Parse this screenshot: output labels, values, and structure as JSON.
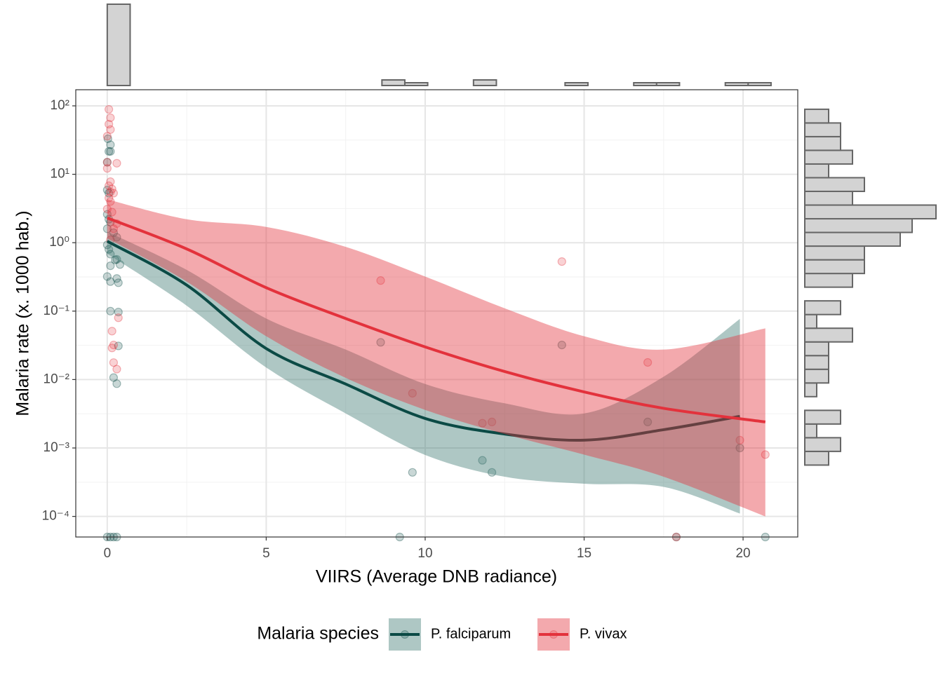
{
  "chart_data": {
    "type": "scatter",
    "x_label": "VIIRS (Average DNB radiance)",
    "y_label": "Malaria rate (x. 1000 hab.)",
    "legend_title": "Malaria species",
    "legend_position": "bottom",
    "grid": true,
    "ylog": true,
    "xlim": [
      -0.99,
      21.72
    ],
    "ylim": [
      5e-05,
      172
    ],
    "xticks": [
      0,
      5,
      10,
      15,
      20
    ],
    "yticks": [
      {
        "value": 100,
        "label": "10²"
      },
      {
        "value": 10,
        "label": "10¹"
      },
      {
        "value": 1,
        "label": "10⁰"
      },
      {
        "value": 0.1,
        "label": "10⁻¹"
      },
      {
        "value": 0.01,
        "label": "10⁻²"
      },
      {
        "value": 0.001,
        "label": "10⁻³"
      },
      {
        "value": 0.0001,
        "label": "10⁻⁴"
      }
    ],
    "series": [
      {
        "name": "P. falciparum",
        "color": "#0b4a45",
        "band_color": "#3f7a72",
        "points": {
          "x": [
            0.02,
            0.1,
            0.05,
            0.1,
            0,
            0,
            0.05,
            0,
            0.05,
            0.1,
            0,
            0.2,
            0.3,
            0,
            0.05,
            0.1,
            0.3,
            0.25,
            0.4,
            0.1,
            0,
            0.1,
            0.3,
            0.35,
            0.1,
            0.35,
            0.35,
            0.2,
            0.3,
            8.6,
            9.6,
            11.8,
            12.1,
            14.3,
            17.0,
            19.9,
            0,
            0.1,
            0.2,
            0.3,
            9.2,
            17.9,
            20.7
          ],
          "y": [
            33,
            27,
            21.6,
            21.6,
            15,
            5.9,
            5.3,
            2.6,
            2.2,
            2.0,
            1.6,
            1.4,
            1.2,
            0.93,
            0.8,
            0.68,
            0.57,
            0.56,
            0.48,
            0.46,
            0.32,
            0.27,
            0.3,
            0.26,
            0.1,
            0.097,
            0.031,
            0.0107,
            0.0087,
            0.035,
            0.00044,
            0.00066,
            0.00044,
            0.032,
            0.0024,
            0.001,
            5e-05,
            5e-05,
            5e-05,
            5e-05,
            5e-05,
            5e-05,
            5e-05
          ]
        },
        "fit": {
          "x": [
            0,
            2.5,
            5,
            7.5,
            10,
            12.5,
            15,
            17.5,
            19.9
          ],
          "y": [
            1.05,
            0.24,
            0.0284,
            0.0086,
            0.0027,
            0.0016,
            0.0013,
            0.00185,
            0.0029
          ],
          "lower": [
            0.69,
            0.12,
            0.015,
            0.0032,
            0.00079,
            0.00038,
            0.0003,
            0.00027,
            0.00011
          ],
          "upper": [
            1.45,
            0.4,
            0.078,
            0.0274,
            0.0086,
            0.0045,
            0.0032,
            0.011,
            0.077
          ]
        }
      },
      {
        "name": "P. vivax",
        "color": "#e3323c",
        "band_color": "#e3323c",
        "points": {
          "x": [
            0.05,
            0.1,
            0.05,
            0.1,
            0,
            0,
            0.3,
            0,
            0.1,
            0.05,
            0.15,
            0.1,
            0.2,
            0.05,
            0.1,
            0,
            0.15,
            0.3,
            0.2,
            0.1,
            0.35,
            0.15,
            0.2,
            0.15,
            0.2,
            0.3,
            8.6,
            9.6,
            11.8,
            12.1,
            14.3,
            17.0,
            19.9,
            20.7,
            17.9
          ],
          "y": [
            89,
            67,
            54,
            45,
            36,
            15,
            14.5,
            12.2,
            7.8,
            6.8,
            6.1,
            5.5,
            5.3,
            4.5,
            4.0,
            3.1,
            2.8,
            1.9,
            1.6,
            1.1,
            0.08,
            0.051,
            0.032,
            0.029,
            0.0177,
            0.0142,
            0.28,
            0.0063,
            0.0023,
            0.0024,
            0.53,
            0.0178,
            0.0013,
            0.0008,
            5e-05
          ]
        },
        "fit": {
          "x": [
            0,
            2.5,
            5,
            7.5,
            10,
            12.5,
            15,
            17.5,
            20.7
          ],
          "y": [
            2.3,
            0.81,
            0.22,
            0.078,
            0.03,
            0.0131,
            0.0066,
            0.0038,
            0.0024
          ],
          "lower": [
            1.16,
            0.27,
            0.043,
            0.0106,
            0.0036,
            0.0016,
            0.0008,
            0.00038,
            0.0001
          ],
          "upper": [
            4.3,
            2.2,
            1.7,
            0.87,
            0.32,
            0.11,
            0.043,
            0.0274,
            0.056
          ]
        }
      }
    ],
    "x_histogram": {
      "bins": [
        0,
        0.72,
        1.44,
        2.16,
        2.88,
        3.6,
        4.32,
        5.04,
        5.76,
        6.48,
        7.2,
        7.92,
        8.64,
        9.36,
        10.08,
        10.8,
        11.52,
        12.24,
        12.96,
        13.68,
        14.4,
        15.12,
        15.84,
        16.56,
        17.28,
        18.0,
        18.72,
        19.44,
        20.16,
        20.88
      ],
      "counts": [
        58,
        0,
        0,
        0,
        0,
        0,
        0,
        0,
        0,
        0,
        0,
        0,
        4,
        2,
        0,
        0,
        4,
        0,
        0,
        0,
        2,
        0,
        0,
        2,
        2,
        0,
        0,
        2,
        2
      ],
      "count_lim": [
        0,
        58
      ],
      "color": "#d3d3d3"
    },
    "y_histogram": {
      "log10_bins": [
        -4.05,
        -3.85,
        -3.65,
        -3.45,
        -3.25,
        -3.05,
        -2.85,
        -2.65,
        -2.45,
        -2.25,
        -2.05,
        -1.85,
        -1.65,
        -1.45,
        -1.25,
        -1.05,
        -0.85,
        -0.65,
        -0.45,
        -0.25,
        -0.05,
        0.15,
        0.35,
        0.55,
        0.75,
        0.95,
        1.15,
        1.35,
        1.55,
        1.75,
        1.95
      ],
      "counts": [
        0,
        0,
        0,
        0,
        2,
        3,
        1,
        3,
        0,
        1,
        2,
        2,
        2,
        4,
        1,
        3,
        0,
        4,
        5,
        5,
        8,
        9,
        11,
        4,
        5,
        2,
        4,
        3,
        3,
        2
      ],
      "count_lim": [
        0,
        11
      ],
      "color": "#d3d3d3"
    }
  }
}
